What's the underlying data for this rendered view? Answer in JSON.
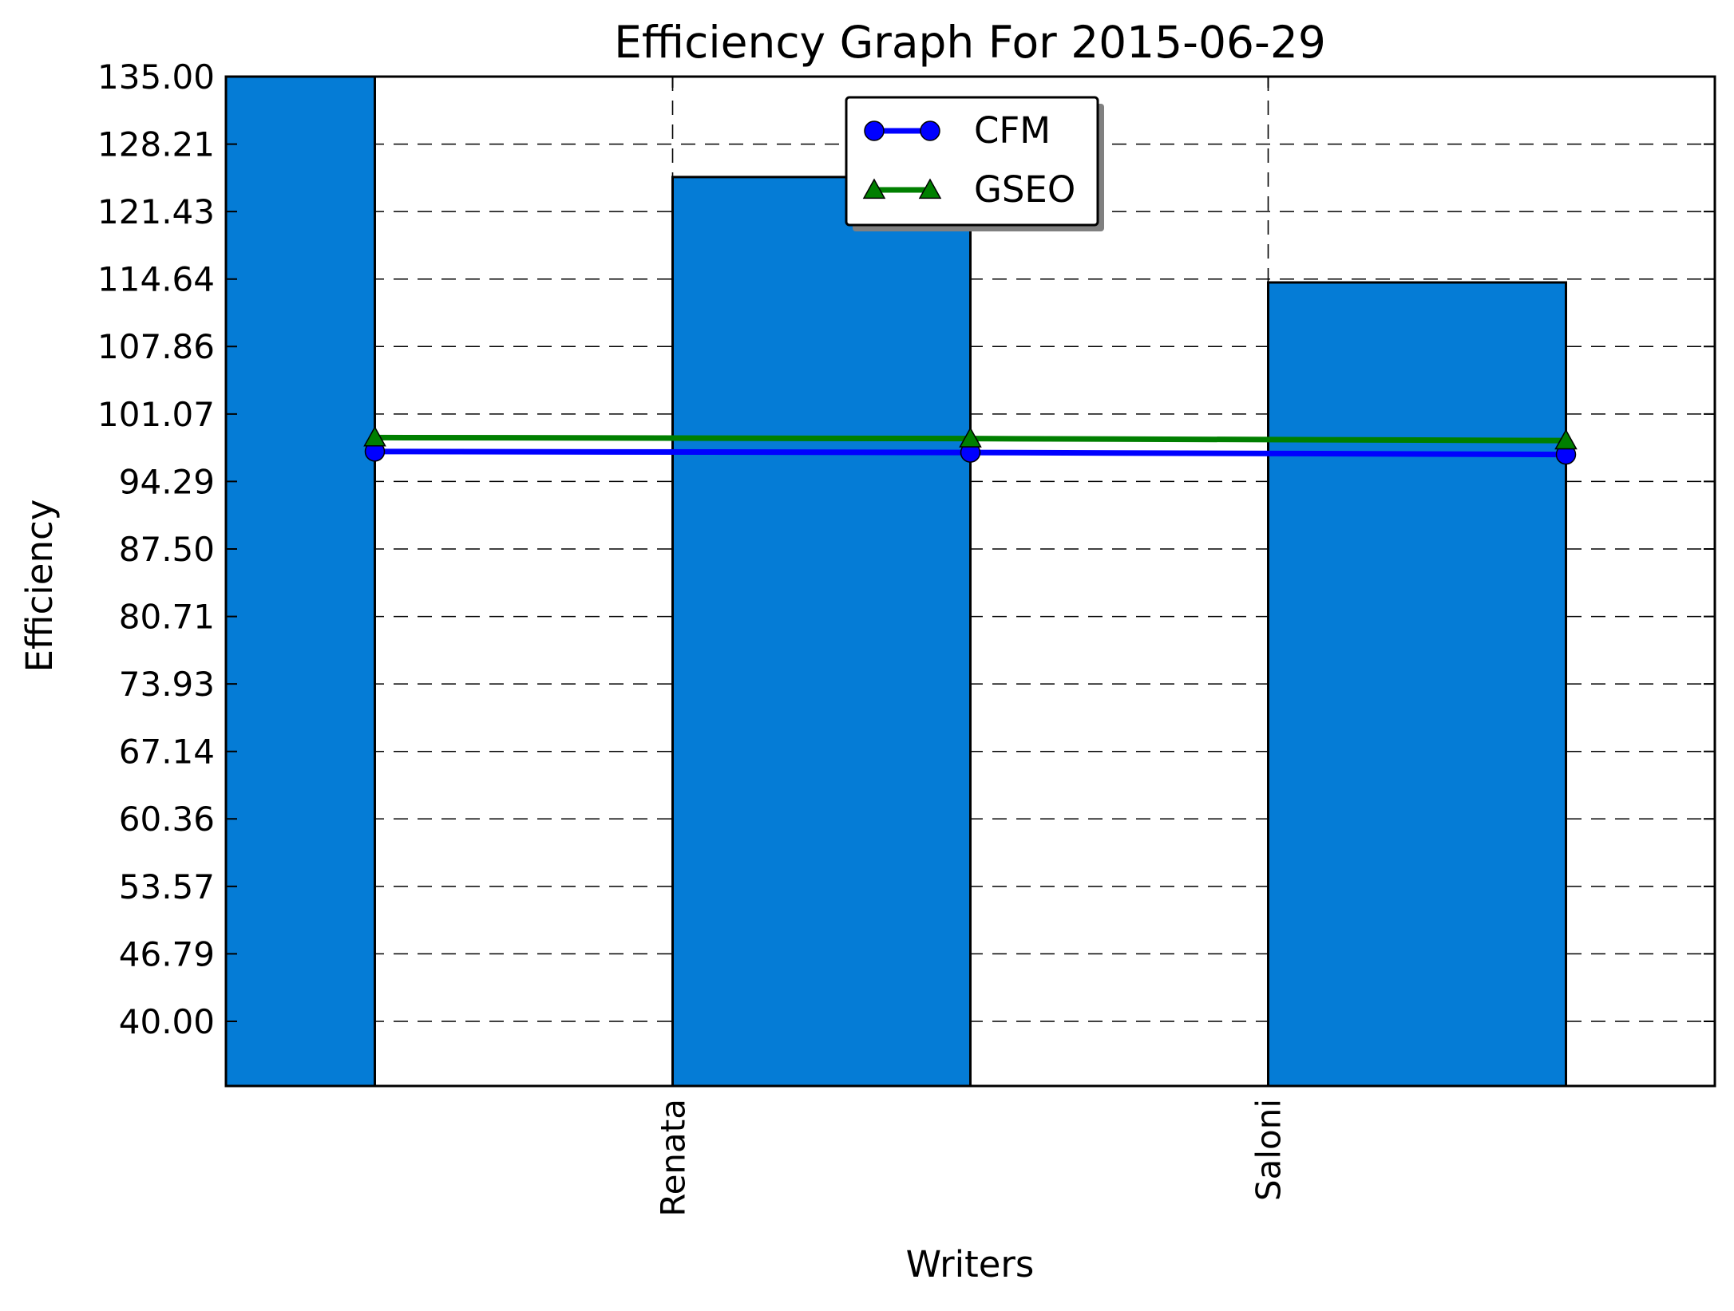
{
  "chart_data": {
    "type": "bar",
    "title": "Efficiency Graph For 2015-06-29",
    "xlabel": "Writers",
    "ylabel": "Efficiency",
    "ylim": [
      33.5,
      135.0
    ],
    "yticks": [
      "40.00",
      "46.79",
      "53.57",
      "60.36",
      "67.14",
      "73.93",
      "80.71",
      "87.50",
      "94.29",
      "101.07",
      "107.86",
      "114.64",
      "121.43",
      "128.21",
      "135.00"
    ],
    "ytick_values": [
      40.0,
      46.79,
      53.57,
      60.36,
      67.14,
      73.93,
      80.71,
      87.5,
      94.29,
      101.07,
      107.86,
      114.64,
      121.43,
      128.21,
      135.0
    ],
    "x_range": [
      -1.5,
      3.5
    ],
    "xticks": [
      0,
      2
    ],
    "categories": [
      "Renata",
      "Saloni"
    ],
    "bars": [
      {
        "x": -1.5,
        "width": 0.5,
        "value": 135.0
      },
      {
        "x": 0.0,
        "width": 1.0,
        "value": 124.9
      },
      {
        "x": 2.0,
        "width": 1.0,
        "value": 114.3
      }
    ],
    "bar_color": "#057CD6",
    "series": [
      {
        "name": "CFM",
        "x": [
          -1.0,
          1.0,
          3.0
        ],
        "values": [
          97.3,
          97.2,
          97.0
        ],
        "color": "#0000FF",
        "marker": "circle"
      },
      {
        "name": "GSEO",
        "x": [
          -1.0,
          1.0,
          3.0
        ],
        "values": [
          98.7,
          98.6,
          98.4
        ],
        "color": "#007F00",
        "marker": "triangle"
      }
    ],
    "grid": true,
    "legend_position": "upper-center"
  }
}
